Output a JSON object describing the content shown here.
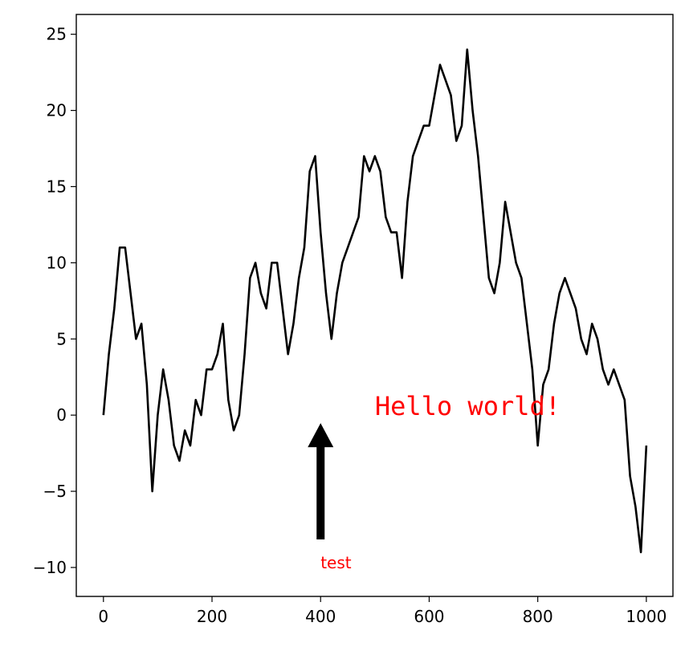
{
  "chart_data": {
    "type": "line",
    "x": [
      0,
      10,
      20,
      30,
      40,
      50,
      60,
      70,
      80,
      90,
      100,
      110,
      120,
      130,
      140,
      150,
      160,
      170,
      180,
      190,
      200,
      210,
      220,
      230,
      240,
      250,
      260,
      270,
      280,
      290,
      300,
      310,
      320,
      330,
      340,
      350,
      360,
      370,
      380,
      390,
      400,
      410,
      420,
      430,
      440,
      450,
      460,
      470,
      480,
      490,
      500,
      510,
      520,
      530,
      540,
      550,
      560,
      570,
      580,
      590,
      600,
      610,
      620,
      630,
      640,
      650,
      660,
      670,
      680,
      690,
      700,
      710,
      720,
      730,
      740,
      750,
      760,
      770,
      780,
      790,
      800,
      810,
      820,
      830,
      840,
      850,
      860,
      870,
      880,
      890,
      900,
      910,
      920,
      930,
      940,
      950,
      960,
      970,
      980,
      990,
      1000
    ],
    "series": [
      {
        "color": "#000000",
        "values": [
          0,
          4,
          7,
          11,
          11,
          8,
          5,
          6,
          2,
          -5,
          0,
          3,
          1,
          -2,
          -3,
          -1,
          -2,
          1,
          0,
          3,
          3,
          4,
          6,
          1,
          -1,
          0,
          4,
          9,
          10,
          8,
          7,
          10,
          10,
          7,
          4,
          6,
          9,
          11,
          16,
          17,
          12,
          8,
          5,
          8,
          10,
          11,
          12,
          13,
          17,
          16,
          17,
          16,
          13,
          12,
          12,
          9,
          14,
          17,
          18,
          19,
          19,
          21,
          23,
          22,
          21,
          18,
          19,
          24,
          20,
          17,
          13,
          9,
          8,
          10,
          14,
          12,
          10,
          9,
          6,
          3,
          -2,
          2,
          3,
          6,
          8,
          9,
          8,
          7,
          5,
          4,
          6,
          5,
          3,
          2,
          3,
          2,
          1,
          -4,
          -6,
          -9,
          -2
        ]
      }
    ],
    "xlim": [
      -50,
      1049
    ],
    "ylim": [
      -11.9,
      26.3
    ],
    "xticks": [
      0,
      200,
      400,
      600,
      800,
      1000
    ],
    "yticks": [
      {
        "value": -10,
        "label": "−10"
      },
      {
        "value": -5,
        "label": "−5"
      },
      0,
      5,
      10,
      15,
      20,
      25
    ],
    "annotations": [
      {
        "text": "Hello world!",
        "x": 500,
        "y": 0,
        "color": "#ff0000"
      },
      {
        "text": "test",
        "x": 400,
        "y": -10,
        "color": "#ff0000",
        "arrow_x": 400,
        "arrow_y": 0
      }
    ]
  }
}
